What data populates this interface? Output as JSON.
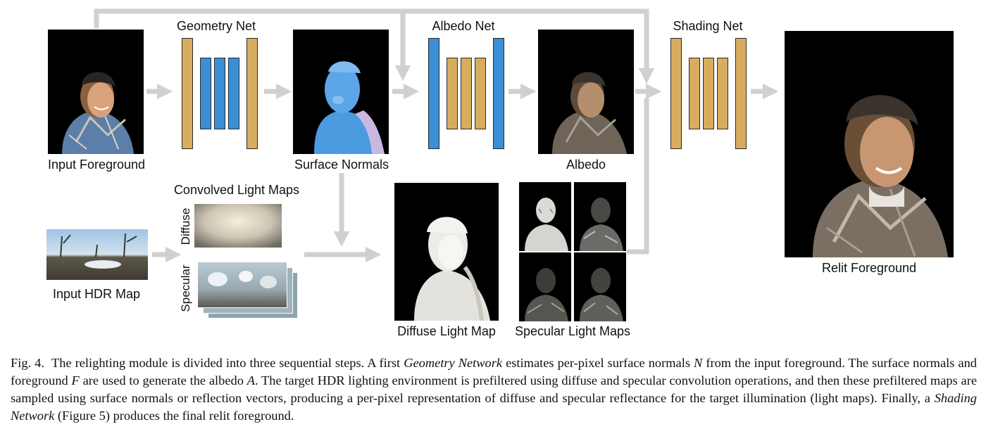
{
  "figure": {
    "labels": {
      "input_foreground": "Input Foreground",
      "geometry_net": "Geometry Net",
      "surface_normals": "Surface Normals",
      "albedo_net": "Albedo Net",
      "albedo": "Albedo",
      "shading_net": "Shading Net",
      "relit_foreground": "Relit Foreground",
      "convolved_light_maps": "Convolved Light Maps",
      "diffuse": "Diffuse",
      "specular": "Specular",
      "input_hdr_map": "Input HDR Map",
      "diffuse_light_map": "Diffuse Light Map",
      "specular_light_maps": "Specular Light Maps"
    },
    "colors": {
      "net_outer_layer": "#d8ac5e",
      "geometry_inner_layer": "#3b8fd6",
      "arrow": "#d0d0d0",
      "panel_background": "#000000"
    }
  },
  "caption": {
    "fig_label": "Fig. 4.",
    "t1": "The relighting module is divided into three sequential steps. A first ",
    "geometry_network": "Geometry Network",
    "t2": " estimates per-pixel surface normals ",
    "var_n": "N",
    "t3": " from the input foreground. The surface normals and foreground ",
    "var_f": "F",
    "t4": " are used to generate the albedo ",
    "var_a": "A",
    "t5": ". The target HDR lighting environment is prefiltered using diffuse and specular convolution operations, and then these prefiltered maps are sampled using surface normals or reflection vectors, producing a per-pixel representation of diffuse and specular reflectance for the target illumination (light maps). Finally, a ",
    "shading_network": "Shading Network",
    "t6": " (Figure 5) produces the final relit foreground."
  }
}
